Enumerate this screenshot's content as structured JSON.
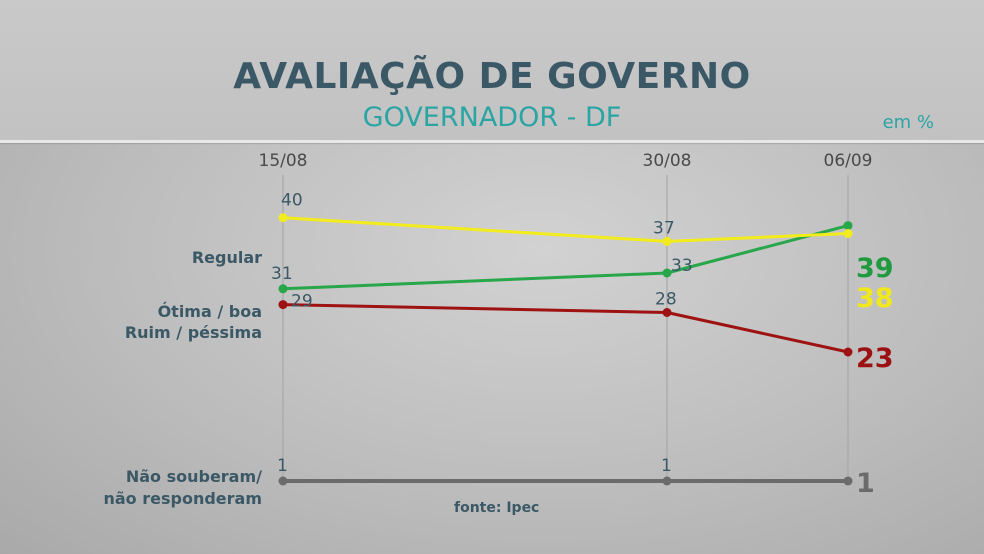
{
  "header": {
    "title": "AVALIAÇÃO DE GOVERNO",
    "subtitle": "GOVERNADOR - DF",
    "unit": "em %"
  },
  "chart_data": {
    "type": "line",
    "x": [
      "15/08",
      "30/08",
      "06/09"
    ],
    "series": [
      {
        "name": "Regular",
        "values": [
          40,
          37,
          38
        ],
        "color": "#f2ec1c",
        "end_color": "#f0e81a"
      },
      {
        "name": "Ótima / boa",
        "values": [
          31,
          33,
          39
        ],
        "color": "#27a64a",
        "end_color": "#1f9a3f"
      },
      {
        "name": "Ruim / péssima",
        "values": [
          29,
          28,
          23
        ],
        "color": "#9e1212",
        "end_color": "#9b1111"
      },
      {
        "name_lines": [
          "Não souberam/",
          "não responderam"
        ],
        "values": [
          1,
          1,
          1
        ],
        "color": "#6b6b6b",
        "end_color": "#6b6b6b"
      }
    ],
    "grid": "vertical lines at each date",
    "source": "fonte: Ipec"
  }
}
